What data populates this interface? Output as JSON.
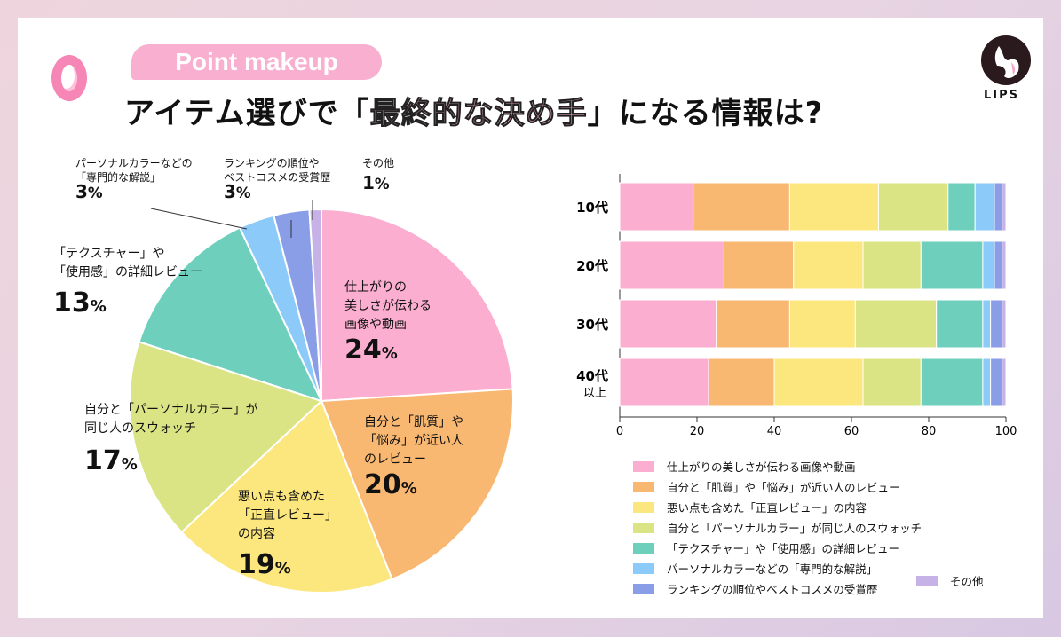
{
  "header": {
    "tag": "Point makeup",
    "q_mark": "Q",
    "title_pre": "アイテム選びで「",
    "title_highlight": "最終的な決め手",
    "title_post": "」になる情報は?",
    "brand": "LIPS"
  },
  "colors": [
    "#fbaed0",
    "#f9b872",
    "#fce77e",
    "#dae485",
    "#6ecfbd",
    "#8ccaf9",
    "#8a9ee8",
    "#c6b2e6"
  ],
  "chart_data": [
    {
      "type": "pie",
      "categories": [
        "仕上がりの美しさが伝わる画像や動画",
        "自分と「肌質」や「悩み」が近い人のレビュー",
        "悪い点も含めた「正直レビュー」の内容",
        "自分と「パーソナルカラー」が同じ人のスウォッチ",
        "「テクスチャー」や「使用感」の詳細レビュー",
        "パーソナルカラーなどの「専門的な解説」",
        "ランキングの順位やベストコスメの受賞歴",
        "その他"
      ],
      "values": [
        24,
        20,
        19,
        17,
        13,
        3,
        3,
        1
      ],
      "labels": [
        {
          "l1": "仕上がりの",
          "l2": "美しさが伝わる",
          "l3": "画像や動画",
          "pct": "24"
        },
        {
          "l1": "自分と「肌質」や",
          "l2": "「悩み」が近い人",
          "l3": "のレビュー",
          "pct": "20"
        },
        {
          "l1": "悪い点も含めた",
          "l2": "「正直レビュー」",
          "l3": "の内容",
          "pct": "19"
        },
        {
          "l1": "自分と「パーソナルカラー」が",
          "l2": "同じ人のスウォッチ",
          "pct": "17"
        },
        {
          "l1": "「テクスチャー」や",
          "l2": "「使用感」の詳細レビュー",
          "pct": "13"
        },
        {
          "l1": "パーソナルカラーなどの",
          "l2": "「専門的な解説」",
          "pct": "3"
        },
        {
          "l1": "ランキングの順位や",
          "l2": "ベストコスメの受賞歴",
          "pct": "3"
        },
        {
          "l1": "その他",
          "pct": "1"
        }
      ],
      "unit": "%"
    },
    {
      "type": "bar",
      "orientation": "horizontal",
      "stacked": true,
      "categories": [
        "10代",
        "20代",
        "30代",
        "40代\n以上"
      ],
      "category_lines": [
        [
          "10代"
        ],
        [
          "20代"
        ],
        [
          "30代"
        ],
        [
          "40代",
          "以上"
        ]
      ],
      "series": [
        {
          "name": "仕上がりの美しさが伝わる画像や動画",
          "values": [
            19,
            27,
            25,
            23
          ]
        },
        {
          "name": "自分と「肌質」や「悩み」が近い人のレビュー",
          "values": [
            25,
            18,
            19,
            17
          ]
        },
        {
          "name": "悪い点も含めた「正直レビュー」の内容",
          "values": [
            23,
            18,
            17,
            23
          ]
        },
        {
          "name": "自分と「パーソナルカラー」が同じ人のスウォッチ",
          "values": [
            18,
            15,
            21,
            15
          ]
        },
        {
          "name": "「テクスチャー」や「使用感」の詳細レビュー",
          "values": [
            7,
            16,
            12,
            16
          ]
        },
        {
          "name": "パーソナルカラーなどの「専門的な解説」",
          "values": [
            5,
            3,
            2,
            2
          ]
        },
        {
          "name": "ランキングの順位やベストコスメの受賞歴",
          "values": [
            2,
            2,
            3,
            3
          ]
        },
        {
          "name": "その他",
          "values": [
            1,
            1,
            1,
            1
          ]
        }
      ],
      "xlim": [
        0,
        100
      ],
      "xticks": [
        "0",
        "20",
        "40",
        "60",
        "80",
        "100"
      ],
      "legend_position": "bottom"
    }
  ]
}
